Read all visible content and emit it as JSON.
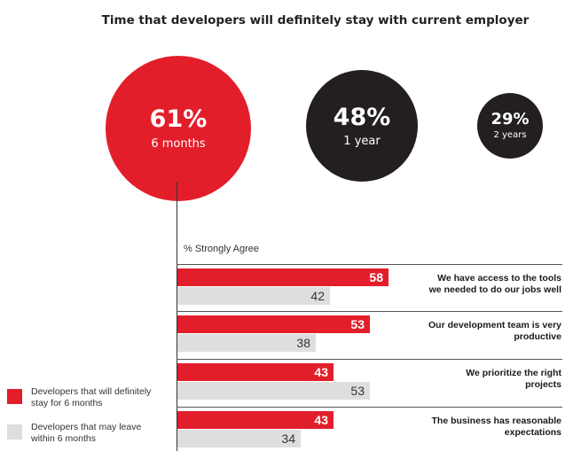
{
  "title": "Time that developers will definitely stay with current employer",
  "colors": {
    "red": "#e31e2b",
    "dark": "#231f20",
    "grey": "#dedede"
  },
  "bubbles": [
    {
      "pct": "61%",
      "period": "6 months",
      "color": "#e31e2b"
    },
    {
      "pct": "48%",
      "period": "1 year",
      "color": "#231f20"
    },
    {
      "pct": "29%",
      "period": "2 years",
      "color": "#231f20"
    }
  ],
  "chart_data": {
    "type": "bar",
    "orientation": "horizontal",
    "xlabel": "% Strongly Agree",
    "xlim": [
      0,
      100
    ],
    "categories": [
      "We have access to the tools we needed to do our jobs well",
      "Our development team is very productive",
      "We prioritize the right projects",
      "The business has reasonable expectations"
    ],
    "series": [
      {
        "name": "Developers that will definitely stay for 6 months",
        "color": "#e31e2b",
        "values": [
          58,
          53,
          43,
          43
        ]
      },
      {
        "name": "Developers that may leave within 6 months",
        "color": "#dedede",
        "values": [
          42,
          38,
          53,
          34
        ]
      }
    ],
    "legend": "bottom-left",
    "grid": false
  },
  "statements": [
    {
      "line1": "We have access to the tools",
      "line2": "we needed to do our jobs well"
    },
    {
      "line1": "Our development team is very",
      "line2": "productive"
    },
    {
      "line1": "We prioritize the right",
      "line2": "projects"
    },
    {
      "line1": "The business has reasonable",
      "line2": "expectations"
    }
  ],
  "legend": [
    {
      "line1": "Developers that will definitely",
      "line2": "stay for 6 months",
      "color": "#e31e2b"
    },
    {
      "line1": "Developers that may leave",
      "line2": "within 6 months",
      "color": "#dedede"
    }
  ]
}
